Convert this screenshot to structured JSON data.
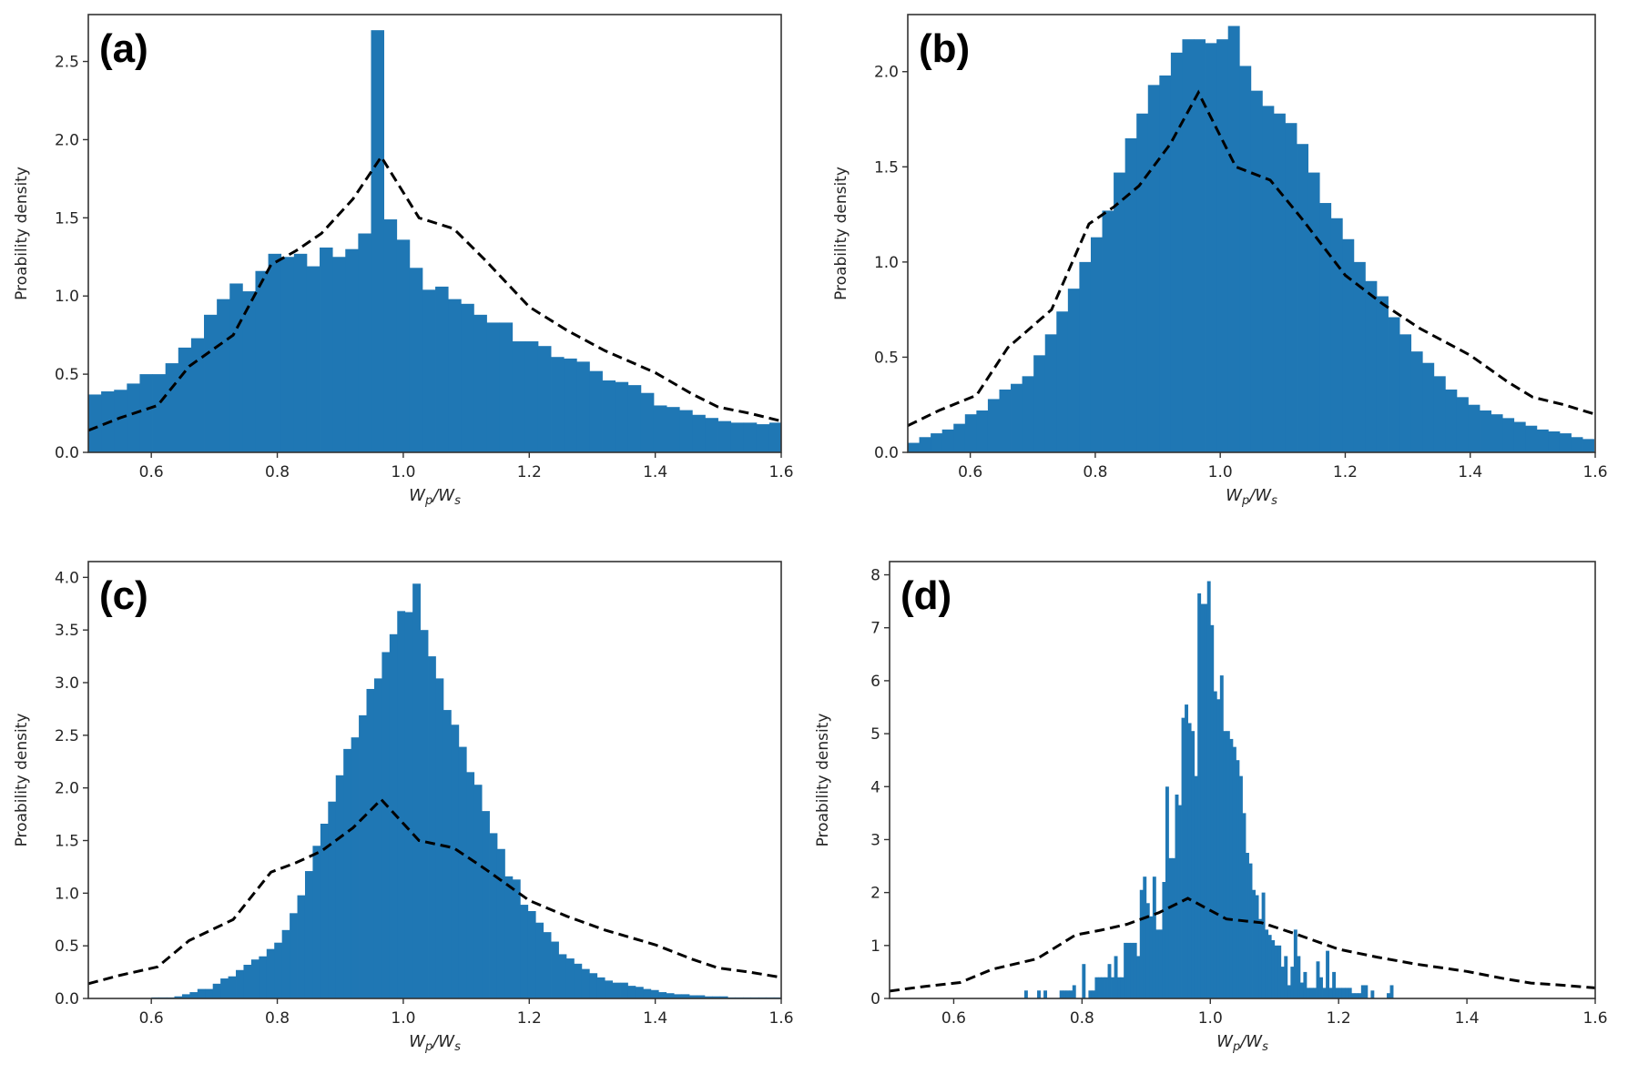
{
  "figure": {
    "bar_color": "#1f77b4",
    "curve_color": "#000000",
    "frame_color": "#333333"
  },
  "chart_data": [
    {
      "panel": "(a)",
      "type": "bar",
      "xlabel": "Wp/Ws",
      "xlabel_main": "W",
      "xlabel_sub1": "p",
      "xlabel_sep": "/W",
      "xlabel_sub2": "s",
      "ylabel": "Proability density",
      "xlim": [
        0.5,
        1.6
      ],
      "ylim": [
        0,
        2.8
      ],
      "xticks": [
        0.6,
        0.8,
        1.0,
        1.2,
        1.4,
        1.6
      ],
      "xtick_labels": [
        "0.6",
        "0.8",
        "1.0",
        "1.2",
        "1.4",
        "1.6"
      ],
      "yticks": [
        0.0,
        0.5,
        1.0,
        1.5,
        2.0,
        2.5
      ],
      "ytick_labels": [
        "0.0",
        "0.5",
        "1.0",
        "1.5",
        "2.0",
        "2.5"
      ],
      "bin_start": 0.5,
      "bin_width": 0.0204,
      "values": [
        0.37,
        0.39,
        0.4,
        0.44,
        0.5,
        0.5,
        0.57,
        0.67,
        0.73,
        0.88,
        0.98,
        1.08,
        1.03,
        1.16,
        1.27,
        1.25,
        1.27,
        1.19,
        1.31,
        1.25,
        1.3,
        1.4,
        2.7,
        1.49,
        1.36,
        1.18,
        1.04,
        1.06,
        0.98,
        0.95,
        0.88,
        0.83,
        0.83,
        0.71,
        0.71,
        0.68,
        0.61,
        0.6,
        0.58,
        0.52,
        0.46,
        0.45,
        0.43,
        0.38,
        0.3,
        0.29,
        0.27,
        0.24,
        0.22,
        0.2,
        0.19,
        0.19,
        0.18,
        0.19
      ],
      "reference_curve": {
        "style": "dashed",
        "x": [
          0.5,
          0.55,
          0.61,
          0.66,
          0.73,
          0.79,
          0.83,
          0.87,
          0.92,
          0.965,
          1.025,
          1.08,
          1.13,
          1.2,
          1.26,
          1.32,
          1.4,
          1.46,
          1.5,
          1.55,
          1.6
        ],
        "y": [
          0.14,
          0.22,
          0.3,
          0.55,
          0.75,
          1.2,
          1.29,
          1.4,
          1.62,
          1.89,
          1.5,
          1.43,
          1.23,
          0.93,
          0.78,
          0.65,
          0.51,
          0.37,
          0.29,
          0.25,
          0.2
        ]
      }
    },
    {
      "panel": "(b)",
      "type": "bar",
      "xlabel": "Wp/Ws",
      "xlabel_main": "W",
      "xlabel_sub1": "p",
      "xlabel_sep": "/W",
      "xlabel_sub2": "s",
      "ylabel": "Proability density",
      "xlim": [
        0.5,
        1.6
      ],
      "ylim": [
        0,
        2.3
      ],
      "xticks": [
        0.6,
        0.8,
        1.0,
        1.2,
        1.4,
        1.6
      ],
      "xtick_labels": [
        "0.6",
        "0.8",
        "1.0",
        "1.2",
        "1.4",
        "1.6"
      ],
      "yticks": [
        0.0,
        0.5,
        1.0,
        1.5,
        2.0
      ],
      "ytick_labels": [
        "0.0",
        "0.5",
        "1.0",
        "1.5",
        "2.0"
      ],
      "bin_start": 0.5,
      "bin_width": 0.0183,
      "values": [
        0.05,
        0.08,
        0.1,
        0.12,
        0.15,
        0.2,
        0.22,
        0.28,
        0.33,
        0.36,
        0.4,
        0.51,
        0.62,
        0.74,
        0.86,
        1.0,
        1.13,
        1.27,
        1.47,
        1.65,
        1.78,
        1.93,
        1.98,
        2.1,
        2.17,
        2.17,
        2.15,
        2.17,
        2.24,
        2.03,
        1.9,
        1.82,
        1.78,
        1.73,
        1.62,
        1.47,
        1.31,
        1.23,
        1.12,
        1.0,
        0.9,
        0.82,
        0.71,
        0.62,
        0.53,
        0.47,
        0.4,
        0.33,
        0.29,
        0.25,
        0.22,
        0.2,
        0.18,
        0.16,
        0.14,
        0.12,
        0.11,
        0.1,
        0.08,
        0.07
      ],
      "reference_curve": {
        "style": "dashed",
        "x": [
          0.5,
          0.55,
          0.61,
          0.66,
          0.73,
          0.79,
          0.83,
          0.87,
          0.92,
          0.965,
          1.025,
          1.08,
          1.13,
          1.2,
          1.26,
          1.32,
          1.4,
          1.46,
          1.5,
          1.55,
          1.6
        ],
        "y": [
          0.14,
          0.22,
          0.3,
          0.55,
          0.75,
          1.2,
          1.29,
          1.4,
          1.62,
          1.89,
          1.5,
          1.43,
          1.23,
          0.93,
          0.78,
          0.65,
          0.51,
          0.37,
          0.29,
          0.25,
          0.2
        ]
      }
    },
    {
      "panel": "(c)",
      "type": "bar",
      "xlabel": "Wp/Ws",
      "xlabel_main": "W",
      "xlabel_sub1": "p",
      "xlabel_sep": "/W",
      "xlabel_sub2": "s",
      "ylabel": "Proability density",
      "xlim": [
        0.5,
        1.6
      ],
      "ylim": [
        0,
        4.15
      ],
      "xticks": [
        0.6,
        0.8,
        1.0,
        1.2,
        1.4,
        1.6
      ],
      "xtick_labels": [
        "0.6",
        "0.8",
        "1.0",
        "1.2",
        "1.4",
        "1.6"
      ],
      "yticks": [
        0.0,
        0.5,
        1.0,
        1.5,
        2.0,
        2.5,
        3.0,
        3.5,
        4.0
      ],
      "ytick_labels": [
        "0.0",
        "0.5",
        "1.0",
        "1.5",
        "2.0",
        "2.5",
        "3.0",
        "3.5",
        "4.0"
      ],
      "bin_start": 0.6,
      "bin_width": 0.0122,
      "values": [
        0.01,
        0.01,
        0.01,
        0.02,
        0.04,
        0.06,
        0.09,
        0.09,
        0.14,
        0.19,
        0.21,
        0.27,
        0.32,
        0.37,
        0.4,
        0.47,
        0.53,
        0.65,
        0.81,
        0.98,
        1.21,
        1.45,
        1.66,
        1.87,
        2.12,
        2.37,
        2.48,
        2.69,
        2.94,
        3.04,
        3.29,
        3.46,
        3.68,
        3.67,
        3.94,
        3.5,
        3.25,
        3.04,
        2.74,
        2.6,
        2.39,
        2.15,
        2.03,
        1.78,
        1.57,
        1.42,
        1.16,
        1.13,
        0.89,
        0.83,
        0.72,
        0.63,
        0.54,
        0.42,
        0.38,
        0.33,
        0.28,
        0.24,
        0.2,
        0.17,
        0.15,
        0.15,
        0.12,
        0.11,
        0.09,
        0.08,
        0.06,
        0.05,
        0.04,
        0.04,
        0.03,
        0.03,
        0.02,
        0.02,
        0.02,
        0.01,
        0.01,
        0.01,
        0.01,
        0.01,
        0.01,
        0.01
      ],
      "reference_curve": {
        "style": "dashed",
        "x": [
          0.5,
          0.55,
          0.61,
          0.66,
          0.73,
          0.79,
          0.83,
          0.87,
          0.92,
          0.965,
          1.025,
          1.08,
          1.13,
          1.2,
          1.26,
          1.32,
          1.4,
          1.46,
          1.5,
          1.55,
          1.6
        ],
        "y": [
          0.14,
          0.22,
          0.3,
          0.55,
          0.75,
          1.2,
          1.29,
          1.4,
          1.62,
          1.89,
          1.5,
          1.43,
          1.23,
          0.93,
          0.78,
          0.65,
          0.51,
          0.37,
          0.29,
          0.25,
          0.2
        ]
      }
    },
    {
      "panel": "(d)",
      "type": "bar",
      "xlabel": "Wp/Ws",
      "xlabel_main": "W",
      "xlabel_sub1": "p",
      "xlabel_sep": "/W",
      "xlabel_sub2": "s",
      "ylabel": "Proability density",
      "xlim": [
        0.5,
        1.6
      ],
      "ylim": [
        0,
        8.25
      ],
      "xticks": [
        0.6,
        0.8,
        1.0,
        1.2,
        1.4,
        1.6
      ],
      "xtick_labels": [
        "0.6",
        "0.8",
        "1.0",
        "1.2",
        "1.4",
        "1.6"
      ],
      "yticks": [
        0,
        1,
        2,
        3,
        4,
        5,
        6,
        7,
        8
      ],
      "ytick_labels": [
        "0",
        "1",
        "2",
        "3",
        "4",
        "5",
        "6",
        "7",
        "8"
      ],
      "bin_start": 0.71,
      "bin_width": 0.005,
      "values": [
        0.15,
        0,
        0,
        0,
        0.15,
        0,
        0.15,
        0,
        0,
        0,
        0,
        0.15,
        0.15,
        0.15,
        0.15,
        0.25,
        0,
        0,
        0.65,
        0,
        0.15,
        0.15,
        0.4,
        0.4,
        0.4,
        0.4,
        0.65,
        0.4,
        0.8,
        0.4,
        0.4,
        1.05,
        1.05,
        1.05,
        1.05,
        0.8,
        2.05,
        2.3,
        1.8,
        1.55,
        2.3,
        1.3,
        1.3,
        2.2,
        4.0,
        2.65,
        2.65,
        3.85,
        3.65,
        5.3,
        5.55,
        5.2,
        5.05,
        4.2,
        7.65,
        7.45,
        7.45,
        7.88,
        7.05,
        5.8,
        5.65,
        6.1,
        5.05,
        5.05,
        4.9,
        4.75,
        4.5,
        4.2,
        3.5,
        2.75,
        2.55,
        2.05,
        1.95,
        1.5,
        2.0,
        1.3,
        1.2,
        1.1,
        1.0,
        1.0,
        0.6,
        0.8,
        0.25,
        0.6,
        1.3,
        0.8,
        0.3,
        0.5,
        0.2,
        0.2,
        0.2,
        0.7,
        0.4,
        0.2,
        0.9,
        0.2,
        0.5,
        0.2,
        0.2,
        0.2,
        0.2,
        0.2,
        0.1,
        0.1,
        0.1,
        0.25,
        0.25,
        0,
        0.15,
        0,
        0,
        0,
        0,
        0.1,
        0.25
      ],
      "reference_curve": {
        "style": "dashed",
        "x": [
          0.5,
          0.55,
          0.61,
          0.66,
          0.73,
          0.79,
          0.83,
          0.87,
          0.92,
          0.965,
          1.025,
          1.08,
          1.13,
          1.2,
          1.26,
          1.32,
          1.4,
          1.46,
          1.5,
          1.55,
          1.6
        ],
        "y": [
          0.14,
          0.22,
          0.3,
          0.55,
          0.75,
          1.2,
          1.29,
          1.4,
          1.62,
          1.89,
          1.5,
          1.43,
          1.23,
          0.93,
          0.78,
          0.65,
          0.51,
          0.37,
          0.29,
          0.25,
          0.2
        ]
      }
    }
  ]
}
